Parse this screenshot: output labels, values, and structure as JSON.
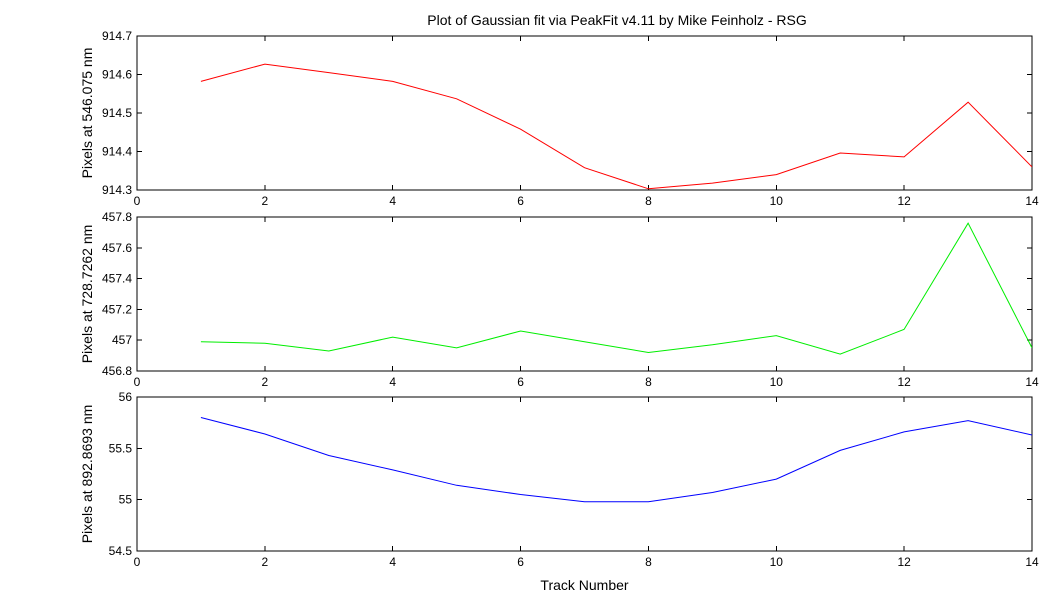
{
  "figure": {
    "title": "Plot of Gaussian fit via PeakFit v4.11 by Mike Feinholz - RSG"
  },
  "chart_data": [
    {
      "type": "line",
      "title": "Plot of Gaussian fit via PeakFit v4.11 by Mike Feinholz - RSG",
      "xlabel": "",
      "ylabel": "Pixels at 546.075 nm",
      "xlim": [
        0,
        14
      ],
      "ylim": [
        914.3,
        914.7
      ],
      "xticks": [
        "0",
        "2",
        "4",
        "6",
        "8",
        "10",
        "12",
        "14"
      ],
      "yticks": [
        "914.3",
        "914.4",
        "914.5",
        "914.6",
        "914.7"
      ],
      "grid": false,
      "color": "#ff0000",
      "x": [
        1,
        2,
        3,
        4,
        5,
        6,
        7,
        8,
        9,
        10,
        11,
        12,
        13,
        14
      ],
      "series": [
        {
          "values": [
            914.582,
            914.627,
            914.605,
            914.582,
            914.537,
            914.458,
            914.358,
            914.303,
            914.318,
            914.34,
            914.396,
            914.386,
            914.528,
            914.36
          ]
        }
      ]
    },
    {
      "type": "line",
      "title": "",
      "xlabel": "",
      "ylabel": "Pixels at 728.7262 nm",
      "xlim": [
        0,
        14
      ],
      "ylim": [
        456.8,
        457.8
      ],
      "xticks": [
        "0",
        "2",
        "4",
        "6",
        "8",
        "10",
        "12",
        "14"
      ],
      "yticks": [
        "456.8",
        "457",
        "457.2",
        "457.4",
        "457.6",
        "457.8"
      ],
      "grid": false,
      "color": "#00ee00",
      "x": [
        1,
        2,
        3,
        4,
        5,
        6,
        7,
        8,
        9,
        10,
        11,
        12,
        13,
        14
      ],
      "series": [
        {
          "values": [
            456.99,
            456.98,
            456.93,
            457.02,
            456.95,
            457.06,
            456.99,
            456.92,
            456.97,
            457.03,
            456.91,
            457.07,
            457.76,
            456.95
          ]
        }
      ]
    },
    {
      "type": "line",
      "title": "",
      "xlabel": "Track Number",
      "ylabel": "Pixels at 892.8693 nm",
      "xlim": [
        0,
        14
      ],
      "ylim": [
        54.5,
        56
      ],
      "xticks": [
        "0",
        "2",
        "4",
        "6",
        "8",
        "10",
        "12",
        "14"
      ],
      "yticks": [
        "54.5",
        "55",
        "55.5",
        "56"
      ],
      "grid": false,
      "color": "#0000ff",
      "x": [
        1,
        2,
        3,
        4,
        5,
        6,
        7,
        8,
        9,
        10,
        11,
        12,
        13,
        14
      ],
      "series": [
        {
          "values": [
            55.8,
            55.64,
            55.43,
            55.29,
            55.14,
            55.05,
            54.98,
            54.98,
            55.07,
            55.2,
            55.48,
            55.66,
            55.77,
            55.63
          ]
        }
      ]
    }
  ]
}
